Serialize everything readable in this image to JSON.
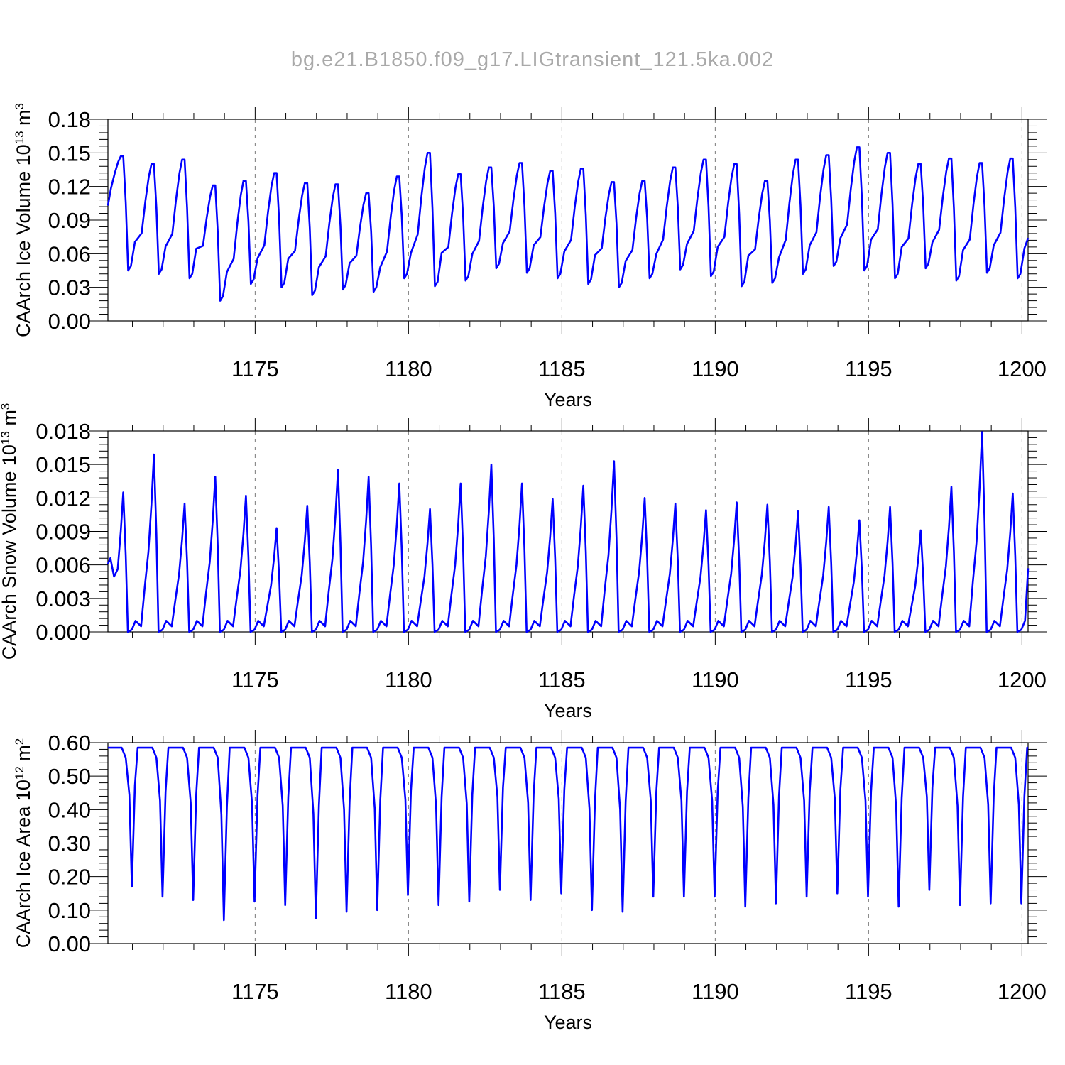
{
  "figure": {
    "title": "bg.e21.B1850.f09_g17.LIGtransient_121.5ka.002"
  },
  "chart_data": [
    {
      "type": "line",
      "ylabel": "CAArch Ice Volume 10",
      "ylabel_exp": "13",
      "ylabel_unit": " m",
      "ylabel_unit_exp": "3",
      "xlabel": "Years",
      "xlim": [
        1170.2,
        1200.2
      ],
      "ylim": [
        0,
        0.18
      ],
      "xticks": [
        1175,
        1180,
        1185,
        1190,
        1195,
        1200
      ],
      "xtick_labels": [
        "1175",
        "1180",
        "1185",
        "1190",
        "1195",
        "1200"
      ],
      "yticks": [
        0,
        0.03,
        0.06,
        0.09,
        0.12,
        0.15,
        0.18
      ],
      "ytick_labels": [
        "0.00",
        "0.03",
        "0.06",
        "0.09",
        "0.12",
        "0.15",
        "0.18"
      ],
      "grid": "x-dashed",
      "line_color": "#0000ff",
      "series": [
        {
          "peaks": [
            0.147,
            0.14,
            0.144,
            0.121,
            0.125,
            0.132,
            0.123,
            0.122,
            0.114,
            0.129,
            0.15,
            0.131,
            0.137,
            0.141,
            0.134,
            0.136,
            0.124,
            0.125,
            0.137,
            0.144,
            0.14,
            0.125,
            0.144,
            0.148,
            0.155,
            0.15,
            0.14,
            0.145,
            0.141,
            0.145
          ],
          "troughs": [
            0.045,
            0.042,
            0.038,
            0.018,
            0.033,
            0.03,
            0.023,
            0.028,
            0.026,
            0.038,
            0.031,
            0.036,
            0.047,
            0.043,
            0.038,
            0.033,
            0.03,
            0.038,
            0.046,
            0.04,
            0.031,
            0.034,
            0.042,
            0.049,
            0.045,
            0.038,
            0.047,
            0.036,
            0.043,
            0.038
          ],
          "start": 0.103,
          "end": 0.074
        }
      ]
    },
    {
      "type": "line",
      "ylabel": "CAArch Snow Volume 10",
      "ylabel_exp": "13",
      "ylabel_unit": " m",
      "ylabel_unit_exp": "3",
      "xlabel": "Years",
      "xlim": [
        1170.2,
        1200.2
      ],
      "ylim": [
        0,
        0.018
      ],
      "xticks": [
        1175,
        1180,
        1185,
        1190,
        1195,
        1200
      ],
      "xtick_labels": [
        "1175",
        "1180",
        "1185",
        "1190",
        "1195",
        "1200"
      ],
      "yticks": [
        0,
        0.003,
        0.006,
        0.009,
        0.012,
        0.015,
        0.018
      ],
      "ytick_labels": [
        "0.000",
        "0.003",
        "0.006",
        "0.009",
        "0.012",
        "0.015",
        "0.018"
      ],
      "grid": "x-dashed",
      "line_color": "#0000ff",
      "series": [
        {
          "peaks": [
            0.0125,
            0.0159,
            0.0115,
            0.0139,
            0.0122,
            0.0093,
            0.0113,
            0.0145,
            0.0139,
            0.0133,
            0.011,
            0.0133,
            0.015,
            0.0133,
            0.0119,
            0.0131,
            0.0153,
            0.012,
            0.0115,
            0.0109,
            0.0116,
            0.0114,
            0.0108,
            0.0112,
            0.01,
            0.0112,
            0.0091,
            0.013,
            0.0179,
            0.0124
          ],
          "troughs": [
            0.0,
            0.0,
            0.0,
            0.0,
            0.0,
            0.0,
            0.0,
            0.0,
            0.0,
            0.0,
            0.0,
            0.0,
            0.0,
            0.0,
            0.0,
            0.0,
            0.0,
            0.0,
            0.0,
            0.0,
            0.0,
            0.0,
            0.0,
            0.0,
            0.0,
            0.0,
            0.0,
            0.0,
            0.0,
            0.0
          ],
          "start": 0.0061,
          "end": 0.0057
        }
      ]
    },
    {
      "type": "line",
      "ylabel": "CAArch Ice Area 10",
      "ylabel_exp": "12",
      "ylabel_unit": " m",
      "ylabel_unit_exp": "2",
      "xlabel": "Years",
      "xlim": [
        1170.2,
        1200.2
      ],
      "ylim": [
        0,
        0.6
      ],
      "xticks": [
        1175,
        1180,
        1185,
        1190,
        1195,
        1200
      ],
      "xtick_labels": [
        "1175",
        "1180",
        "1185",
        "1190",
        "1195",
        "1200"
      ],
      "yticks": [
        0,
        0.1,
        0.2,
        0.3,
        0.4,
        0.5,
        0.6
      ],
      "ytick_labels": [
        "0.00",
        "0.10",
        "0.20",
        "0.30",
        "0.40",
        "0.50",
        "0.60"
      ],
      "grid": "x-dashed",
      "line_color": "#0000ff",
      "series": [
        {
          "peaks": [
            0.585,
            0.585,
            0.585,
            0.585,
            0.585,
            0.585,
            0.585,
            0.585,
            0.585,
            0.585,
            0.585,
            0.585,
            0.585,
            0.585,
            0.585,
            0.585,
            0.585,
            0.585,
            0.585,
            0.585,
            0.585,
            0.585,
            0.585,
            0.585,
            0.585,
            0.585,
            0.585,
            0.585,
            0.585,
            0.585
          ],
          "troughs": [
            0.17,
            0.14,
            0.13,
            0.07,
            0.125,
            0.115,
            0.075,
            0.095,
            0.1,
            0.145,
            0.115,
            0.125,
            0.16,
            0.13,
            0.15,
            0.1,
            0.095,
            0.14,
            0.14,
            0.14,
            0.11,
            0.12,
            0.14,
            0.15,
            0.14,
            0.11,
            0.16,
            0.115,
            0.12,
            0.12
          ],
          "start": 0.585,
          "end": 0.585
        }
      ]
    }
  ]
}
